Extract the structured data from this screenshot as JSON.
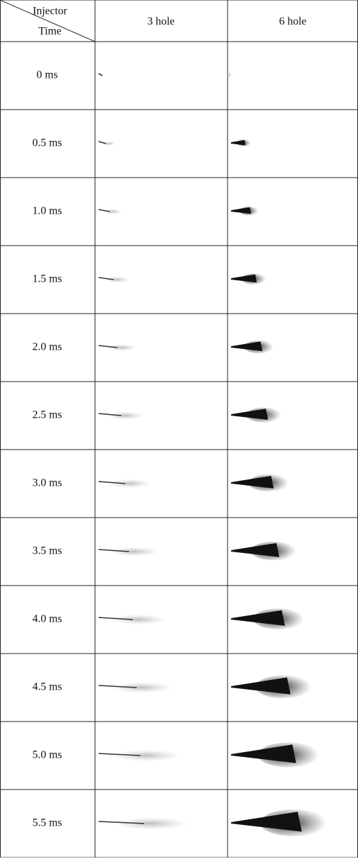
{
  "table": {
    "corner": {
      "top": "Injector",
      "bottom": "Time"
    },
    "columns": [
      "3 hole",
      "6 hole"
    ],
    "rows": [
      "0 ms",
      "0.5 ms",
      "1.0 ms",
      "1.5 ms",
      "2.0 ms",
      "2.5 ms",
      "3.0 ms",
      "3.5 ms",
      "4.0 ms",
      "4.5 ms",
      "5.0 ms",
      "5.5 ms"
    ]
  }
}
